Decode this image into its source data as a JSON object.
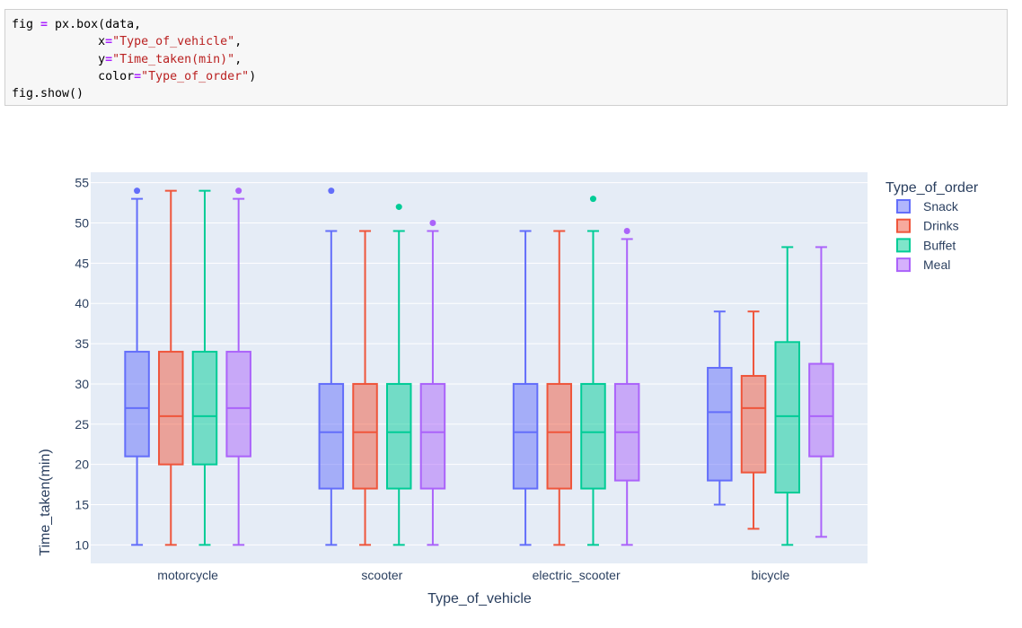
{
  "code": {
    "lines": [
      [
        {
          "t": "fig "
        },
        {
          "t": "=",
          "c": "kw-eq"
        },
        {
          "t": " px.box(data,"
        }
      ],
      [
        {
          "t": "            x"
        },
        {
          "t": "=",
          "c": "kw-eq"
        },
        {
          "t": "\"Type_of_vehicle\"",
          "c": "str"
        },
        {
          "t": ","
        }
      ],
      [
        {
          "t": "            y"
        },
        {
          "t": "=",
          "c": "kw-eq"
        },
        {
          "t": "\"Time_taken(min)\"",
          "c": "str"
        },
        {
          "t": ","
        }
      ],
      [
        {
          "t": "            color"
        },
        {
          "t": "=",
          "c": "kw-eq"
        },
        {
          "t": "\"Type_of_order\"",
          "c": "str"
        },
        {
          "t": ")"
        }
      ],
      [
        {
          "t": "fig.show()"
        }
      ]
    ]
  },
  "chart_data": {
    "type": "box",
    "xlabel": "Type_of_vehicle",
    "ylabel": "Time_taken(min)",
    "ylim": [
      7.7,
      56.3
    ],
    "yticks": [
      10,
      15,
      20,
      25,
      30,
      35,
      40,
      45,
      50,
      55
    ],
    "grid": true,
    "legend": {
      "title": "Type_of_order",
      "placement": "top-right"
    },
    "categories": [
      "motorcycle",
      "scooter",
      "electric_scooter",
      "bicycle"
    ],
    "series": [
      {
        "name": "Snack",
        "color": "#636efa",
        "boxes": [
          {
            "min": 10,
            "q1": 21,
            "median": 27,
            "q3": 34,
            "max": 53,
            "outliers": [
              54
            ]
          },
          {
            "min": 10,
            "q1": 17,
            "median": 24,
            "q3": 30,
            "max": 49,
            "outliers": [
              54
            ]
          },
          {
            "min": 10,
            "q1": 17,
            "median": 24,
            "q3": 30,
            "max": 49,
            "outliers": []
          },
          {
            "min": 15,
            "q1": 18,
            "median": 26.5,
            "q3": 32,
            "max": 39,
            "outliers": []
          }
        ]
      },
      {
        "name": "Drinks",
        "color": "#ef553b",
        "boxes": [
          {
            "min": 10,
            "q1": 20,
            "median": 26,
            "q3": 34,
            "max": 54,
            "outliers": []
          },
          {
            "min": 10,
            "q1": 17,
            "median": 24,
            "q3": 30,
            "max": 49,
            "outliers": []
          },
          {
            "min": 10,
            "q1": 17,
            "median": 24,
            "q3": 30,
            "max": 49,
            "outliers": []
          },
          {
            "min": 12,
            "q1": 19,
            "median": 27,
            "q3": 31,
            "max": 39,
            "outliers": []
          }
        ]
      },
      {
        "name": "Buffet",
        "color": "#00cc96",
        "boxes": [
          {
            "min": 10,
            "q1": 20,
            "median": 26,
            "q3": 34,
            "max": 54,
            "outliers": []
          },
          {
            "min": 10,
            "q1": 17,
            "median": 24,
            "q3": 30,
            "max": 49,
            "outliers": [
              52
            ]
          },
          {
            "min": 10,
            "q1": 17,
            "median": 24,
            "q3": 30,
            "max": 49,
            "outliers": [
              53
            ]
          },
          {
            "min": 10,
            "q1": 16.5,
            "median": 26,
            "q3": 35.2,
            "max": 47,
            "outliers": []
          }
        ]
      },
      {
        "name": "Meal",
        "color": "#ab63fa",
        "boxes": [
          {
            "min": 10,
            "q1": 21,
            "median": 27,
            "q3": 34,
            "max": 53,
            "outliers": [
              54
            ]
          },
          {
            "min": 10,
            "q1": 17,
            "median": 24,
            "q3": 30,
            "max": 49,
            "outliers": [
              50
            ]
          },
          {
            "min": 10,
            "q1": 18,
            "median": 24,
            "q3": 30,
            "max": 48,
            "outliers": [
              49
            ]
          },
          {
            "min": 11,
            "q1": 21,
            "median": 26,
            "q3": 32.5,
            "max": 47,
            "outliers": []
          }
        ]
      }
    ]
  }
}
